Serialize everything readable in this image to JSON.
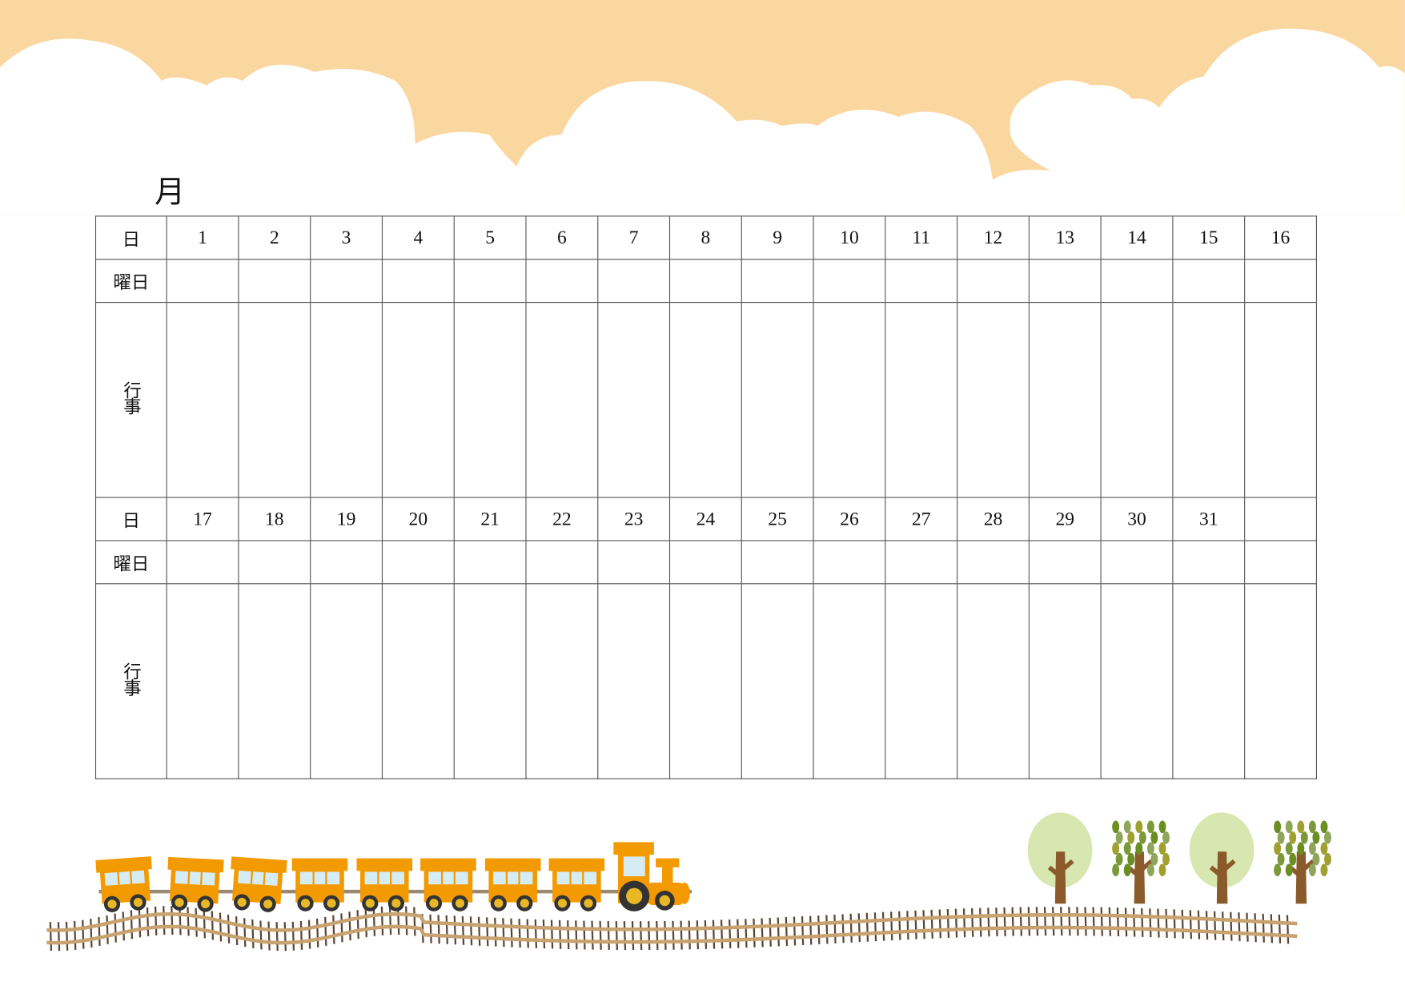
{
  "title": "月",
  "colors": {
    "sky": "#fbd7a0",
    "train": "#f29a00",
    "track": "#c8a370",
    "tie": "#5b4636",
    "tree_light": "#d8e7b0",
    "trunk": "#8b5a2b"
  },
  "table": {
    "sections": [
      {
        "day_label": "日",
        "weekday_label": "曜日",
        "events_label": "行事",
        "days": [
          "1",
          "2",
          "3",
          "4",
          "5",
          "6",
          "7",
          "8",
          "9",
          "10",
          "11",
          "12",
          "13",
          "14",
          "15",
          "16"
        ]
      },
      {
        "day_label": "日",
        "weekday_label": "曜日",
        "events_label": "行事",
        "days": [
          "17",
          "18",
          "19",
          "20",
          "21",
          "22",
          "23",
          "24",
          "25",
          "26",
          "27",
          "28",
          "29",
          "30",
          "31",
          ""
        ]
      }
    ]
  },
  "decorations": {
    "icons": [
      "cloud-border",
      "train-icon",
      "railway-track",
      "tree-icon"
    ]
  }
}
